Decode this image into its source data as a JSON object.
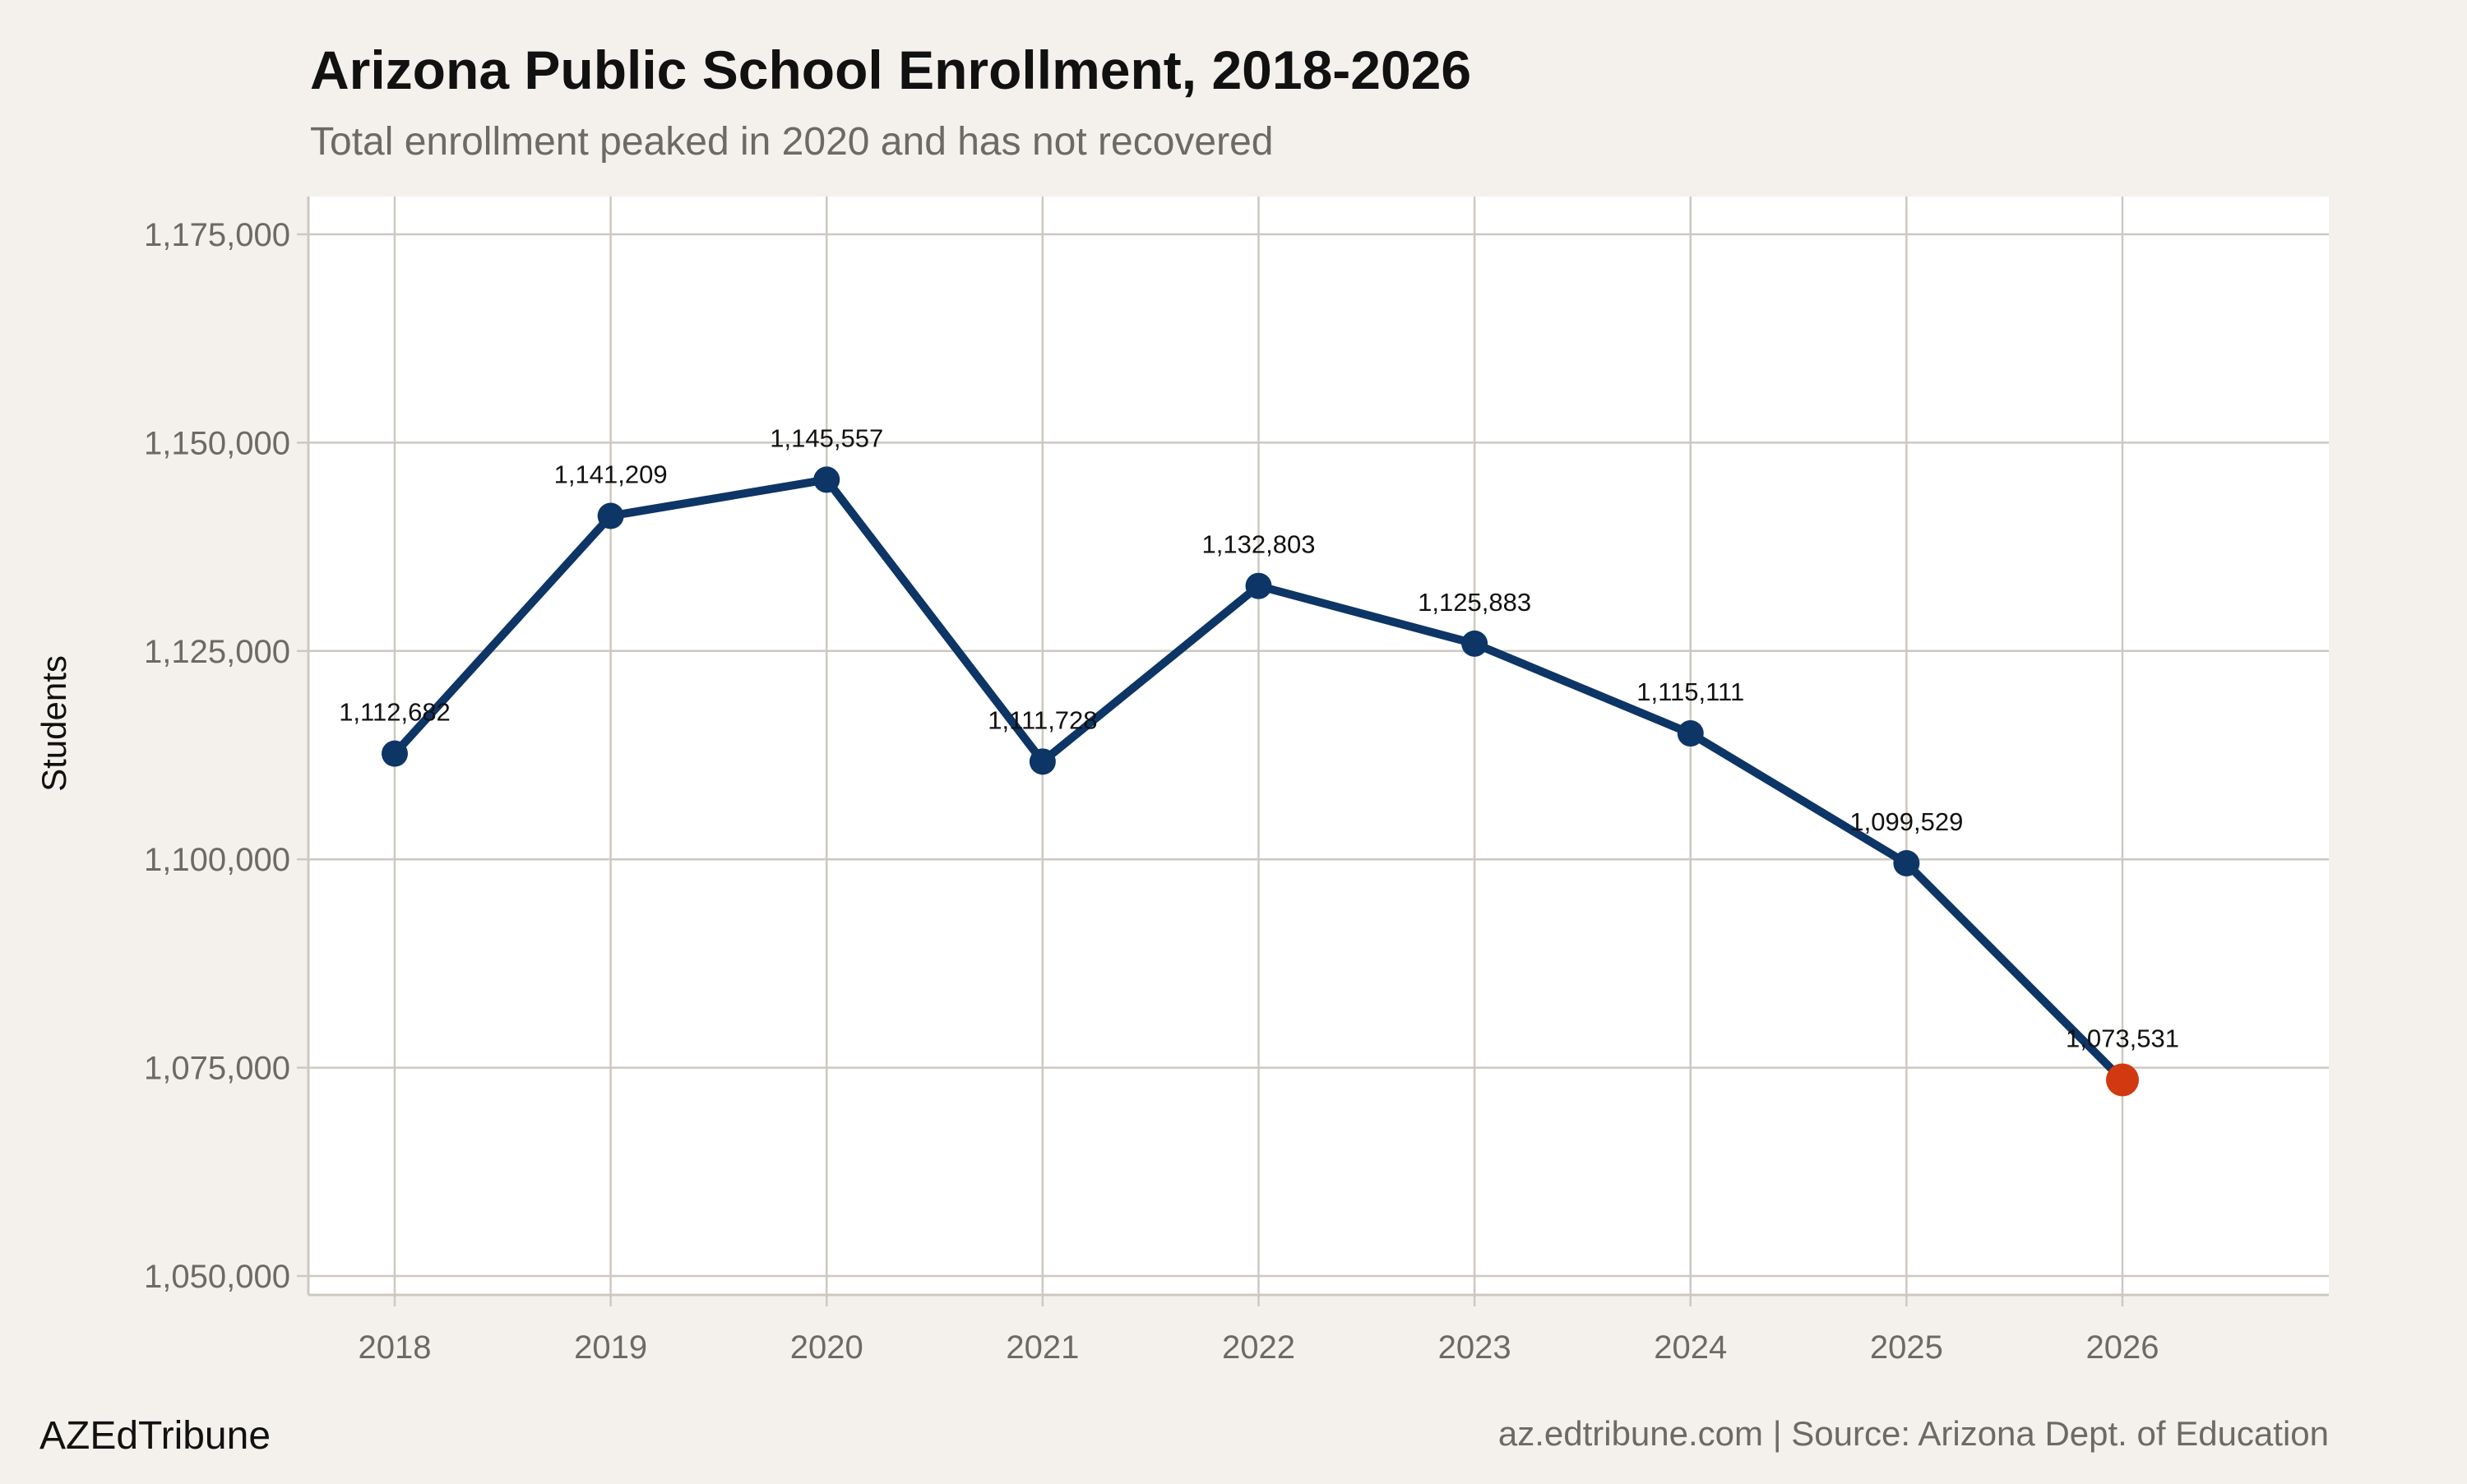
{
  "chart_data": {
    "type": "line",
    "title": "Arizona Public School Enrollment, 2018-2026",
    "subtitle": "Total enrollment peaked in 2020 and has not recovered",
    "xlabel": "",
    "ylabel": "Students",
    "categories": [
      "2018",
      "2019",
      "2020",
      "2021",
      "2022",
      "2023",
      "2024",
      "2025",
      "2026"
    ],
    "values": [
      1112682,
      1141209,
      1145557,
      1111728,
      1132803,
      1125883,
      1115111,
      1099529,
      1073531
    ],
    "data_labels": [
      "1,112,682",
      "1,141,209",
      "1,145,557",
      "1,111,728",
      "1,132,803",
      "1,125,883",
      "1,115,111",
      "1,099,529",
      "1,073,531"
    ],
    "ylim": [
      1047500,
      1180000
    ],
    "yticks": [
      1050000,
      1075000,
      1100000,
      1125000,
      1150000,
      1175000
    ],
    "ytick_labels": [
      "1,050,000",
      "1,075,000",
      "1,100,000",
      "1,125,000",
      "1,150,000",
      "1,175,000"
    ],
    "grid": true,
    "colors": {
      "line": "#0d3566",
      "highlight": "#d13a10",
      "grid": "#cdc8c0",
      "background": "#f4f1ec",
      "panel": "#ffffff"
    }
  },
  "footer": {
    "brand": "AZEdTribune",
    "source": "az.edtribune.com | Source: Arizona Dept. of Education"
  }
}
